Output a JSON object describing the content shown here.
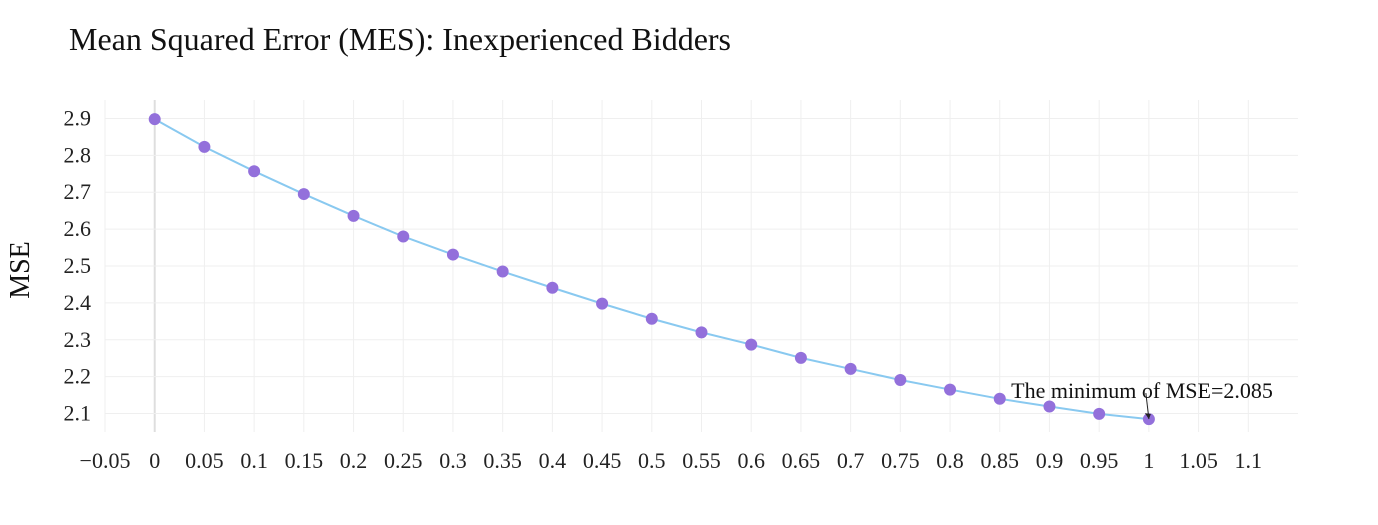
{
  "chart_data": {
    "type": "line",
    "title": "Mean Squared Error (MES): Inexperienced Bidders",
    "xlabel": "",
    "ylabel": "MSE",
    "xlim": [
      -0.05,
      1.15
    ],
    "ylim": [
      2.05,
      2.95
    ],
    "x_ticks": [
      -0.05,
      0,
      0.05,
      0.1,
      0.15,
      0.2,
      0.25,
      0.3,
      0.35,
      0.4,
      0.45,
      0.5,
      0.55,
      0.6,
      0.65,
      0.7,
      0.75,
      0.8,
      0.85,
      0.9,
      0.95,
      1,
      1.05,
      1.1
    ],
    "x_tick_labels": [
      "−0.05",
      "0",
      "0.05",
      "0.1",
      "0.15",
      "0.2",
      "0.25",
      "0.3",
      "0.35",
      "0.4",
      "0.45",
      "0.5",
      "0.55",
      "0.6",
      "0.65",
      "0.7",
      "0.75",
      "0.8",
      "0.85",
      "0.9",
      "0.95",
      "1",
      "1.05",
      "1.1"
    ],
    "y_ticks": [
      2.1,
      2.2,
      2.3,
      2.4,
      2.5,
      2.6,
      2.7,
      2.8,
      2.9
    ],
    "y_tick_labels": [
      "2.1",
      "2.2",
      "2.3",
      "2.4",
      "2.5",
      "2.6",
      "2.7",
      "2.8",
      "2.9"
    ],
    "grid": true,
    "legend": false,
    "series": [
      {
        "x": [
          0,
          0.05,
          0.1,
          0.15,
          0.2,
          0.25,
          0.3,
          0.35,
          0.4,
          0.45,
          0.5,
          0.55,
          0.6,
          0.65,
          0.7,
          0.75,
          0.8,
          0.85,
          0.9,
          0.95,
          1
        ],
        "y": [
          2.898,
          2.823,
          2.757,
          2.695,
          2.636,
          2.58,
          2.531,
          2.485,
          2.441,
          2.398,
          2.357,
          2.32,
          2.287,
          2.251,
          2.221,
          2.191,
          2.165,
          2.14,
          2.119,
          2.099,
          2.085
        ],
        "line_color": "#89c9f0",
        "marker_color": "#9370db"
      }
    ],
    "annotations": [
      {
        "text": "The minimum of MSE=2.085",
        "x": 1,
        "y": 2.085
      }
    ]
  }
}
